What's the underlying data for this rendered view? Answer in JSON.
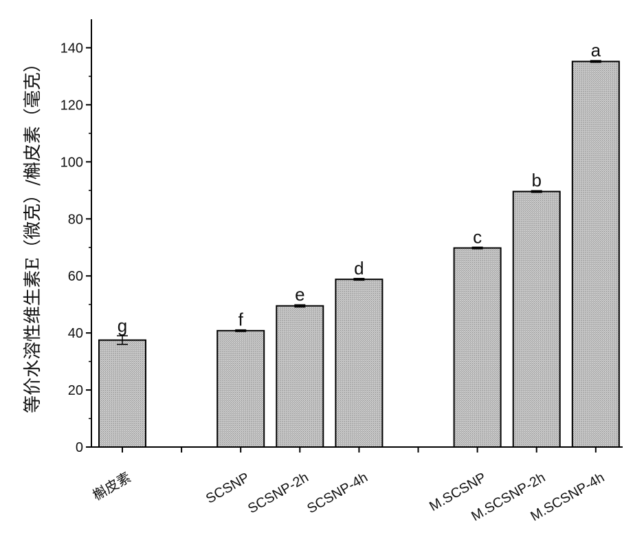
{
  "chart_data": {
    "type": "bar",
    "ylabel": "等价水溶性维生素E（微克）/槲皮素（毫克）",
    "xlabel": "",
    "ylim": [
      0,
      150
    ],
    "yticks": [
      0,
      20,
      40,
      60,
      80,
      100,
      120,
      140
    ],
    "grid": false,
    "categories": [
      "槲皮素",
      "SCSNP",
      "SCSNP-2h",
      "SCSNP-4h",
      "M.SCSNP",
      "M.SCSNP-2h",
      "M.SCSNP-4h"
    ],
    "slots": [
      0,
      2,
      3,
      4,
      6,
      7,
      8
    ],
    "values": [
      37.5,
      40.8,
      49.5,
      58.8,
      69.8,
      89.6,
      135.2
    ],
    "errors": [
      1.5,
      0.3,
      0.4,
      0.3,
      0.3,
      0.3,
      0.3
    ],
    "letters": [
      "g",
      "f",
      "e",
      "d",
      "c",
      "b",
      "a"
    ],
    "bar_fill": "#c8c8c8"
  }
}
